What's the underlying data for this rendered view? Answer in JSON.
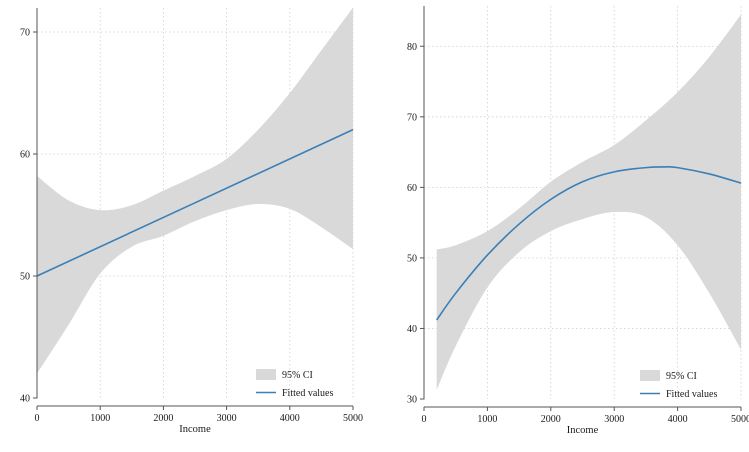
{
  "colors": {
    "ci_fill": "#d9d9d9",
    "fit_line": "#3a7fb6",
    "grid": "#cfcfcf",
    "axis": "#555555"
  },
  "chart_data": [
    {
      "type": "line",
      "title": "",
      "xlabel": "Income",
      "ylabel": "",
      "xlim": [
        0,
        5000
      ],
      "ylim": [
        40,
        70
      ],
      "xticks": [
        0,
        1000,
        2000,
        3000,
        4000,
        5000
      ],
      "yticks": [
        40,
        50,
        60,
        70
      ],
      "xtick_labels": [
        "0",
        "1000",
        "2000",
        "3000",
        "4000",
        "5000"
      ],
      "ytick_labels": [
        "40",
        "50",
        "60",
        "70"
      ],
      "grid": true,
      "legend_position": "bottom-right",
      "legend": [
        {
          "label": "95% CI",
          "kind": "area"
        },
        {
          "label": "Fitted values",
          "kind": "line"
        }
      ],
      "series": [
        {
          "name": "Fitted values",
          "kind": "line",
          "x": [
            0,
            5000
          ],
          "y": [
            50.0,
            62.0
          ]
        },
        {
          "name": "95% CI",
          "kind": "band",
          "x": [
            0,
            500,
            1000,
            1500,
            2000,
            2500,
            3000,
            3500,
            4000,
            4500,
            5000
          ],
          "upper": [
            58.2,
            56.2,
            55.4,
            55.8,
            57.0,
            58.2,
            59.6,
            62.0,
            65.0,
            68.5,
            72.0
          ],
          "lower": [
            42.0,
            46.0,
            50.2,
            52.4,
            53.3,
            54.5,
            55.4,
            55.9,
            55.5,
            54.0,
            52.2
          ]
        }
      ]
    },
    {
      "type": "line",
      "title": "",
      "xlabel": "Income",
      "ylabel": "",
      "xlim": [
        0,
        5000
      ],
      "ylim": [
        30,
        85
      ],
      "xticks": [
        0,
        1000,
        2000,
        3000,
        4000,
        5000
      ],
      "yticks": [
        30,
        40,
        50,
        60,
        70,
        80
      ],
      "xtick_labels": [
        "0",
        "1000",
        "2000",
        "3000",
        "4000",
        "5000"
      ],
      "ytick_labels": [
        "30",
        "40",
        "50",
        "60",
        "70",
        "80"
      ],
      "grid": true,
      "legend_position": "bottom-right",
      "legend": [
        {
          "label": "95% CI",
          "kind": "area"
        },
        {
          "label": "Fitted values",
          "kind": "line"
        }
      ],
      "series": [
        {
          "name": "Fitted values",
          "kind": "line",
          "x": [
            200,
            500,
            1000,
            1500,
            2000,
            2500,
            3000,
            3500,
            3800,
            4000,
            4500,
            5000
          ],
          "y": [
            41.2,
            45.0,
            50.4,
            54.8,
            58.3,
            60.8,
            62.2,
            62.8,
            62.9,
            62.8,
            61.9,
            60.6
          ]
        },
        {
          "name": "95% CI",
          "kind": "band",
          "x": [
            200,
            500,
            1000,
            1500,
            2000,
            2500,
            3000,
            3500,
            4000,
            4500,
            5000
          ],
          "upper": [
            51.2,
            51.8,
            53.8,
            57.0,
            60.8,
            63.6,
            66.0,
            69.5,
            73.5,
            78.5,
            84.5
          ],
          "lower": [
            31.3,
            37.5,
            45.8,
            50.8,
            53.8,
            55.5,
            56.5,
            55.8,
            51.8,
            45.0,
            37.0
          ]
        }
      ]
    }
  ]
}
